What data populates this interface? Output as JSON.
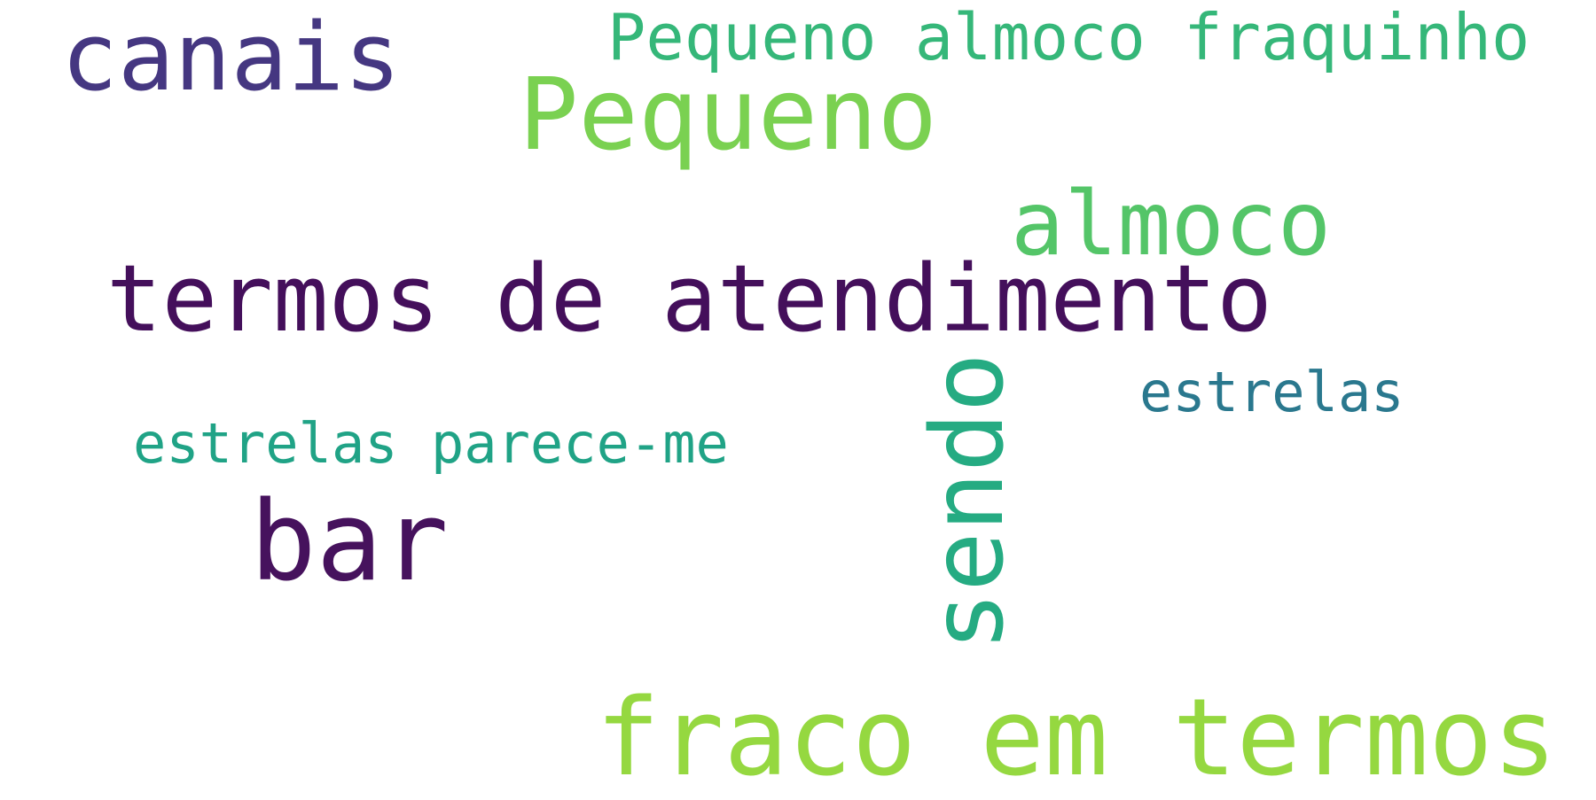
{
  "word_cloud": {
    "background": "#ffffff",
    "words": [
      {
        "id": "canais",
        "text": "canais",
        "color": "#453781"
      },
      {
        "id": "frase-top",
        "text": "Pequeno almoco fraquinho",
        "color": "#35b779"
      },
      {
        "id": "pequeno",
        "text": "Pequeno",
        "color": "#7ad151"
      },
      {
        "id": "almoco",
        "text": "almoco",
        "color": "#54c568"
      },
      {
        "id": "termos-atendimento",
        "text": "termos de atendimento",
        "color": "#440f5b"
      },
      {
        "id": "estrelas",
        "text": "estrelas",
        "color": "#2a788e"
      },
      {
        "id": "estrelas-parece-me",
        "text": "estrelas parece-me",
        "color": "#20a386"
      },
      {
        "id": "bar",
        "text": "bar",
        "color": "#46125d"
      },
      {
        "id": "sendo",
        "text": "sendo",
        "color": "#25ab82",
        "orientation": "vertical"
      },
      {
        "id": "fraco-em-termos",
        "text": "fraco em termos",
        "color": "#95d840"
      }
    ]
  }
}
